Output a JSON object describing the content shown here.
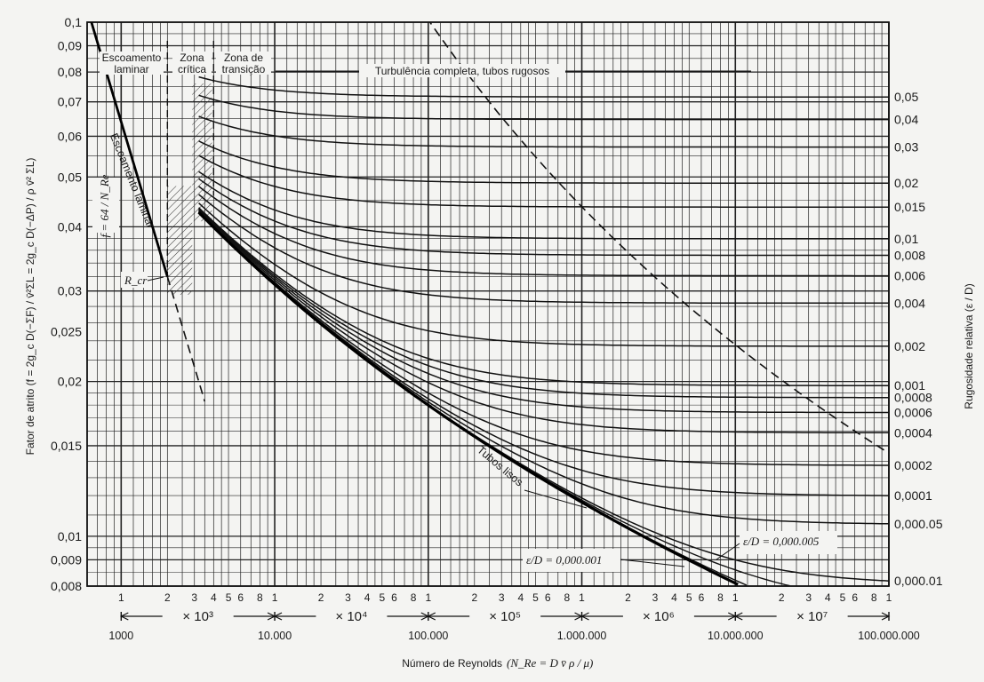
{
  "chart_data": {
    "type": "line",
    "x_scale": "log",
    "y_scale": "log",
    "xlim": [
      600,
      100000000
    ],
    "ylim": [
      0.008,
      0.1
    ],
    "grid": true,
    "ylabel": "Fator de atrito",
    "ylabel_formula": "(f = 2g_c D(−ΣF) / v̄²ΣL = 2g_c D(−ΔP) / ρ v̄² ΣL)",
    "xlabel": "Número de Reynolds",
    "xlabel_formula": "(N_Re = D v̄ ρ / μ)",
    "right_label": "Rugosidade relativa",
    "right_label_formula": "(ε / D)",
    "y_ticks": [
      {
        "v": 0.1,
        "t": "0,1"
      },
      {
        "v": 0.09,
        "t": "0,09"
      },
      {
        "v": 0.08,
        "t": "0,08"
      },
      {
        "v": 0.07,
        "t": "0,07"
      },
      {
        "v": 0.06,
        "t": "0,06"
      },
      {
        "v": 0.05,
        "t": "0,05"
      },
      {
        "v": 0.04,
        "t": "0,04"
      },
      {
        "v": 0.03,
        "t": "0,03"
      },
      {
        "v": 0.025,
        "t": "0,025"
      },
      {
        "v": 0.02,
        "t": "0,02"
      },
      {
        "v": 0.015,
        "t": "0,015"
      },
      {
        "v": 0.01,
        "t": "0,01"
      },
      {
        "v": 0.009,
        "t": "0,009"
      },
      {
        "v": 0.008,
        "t": "0,008"
      }
    ],
    "x_minor_labels": [
      "1",
      "2",
      "3",
      "4",
      "5",
      "6",
      "8"
    ],
    "x_decade_labels": [
      {
        "v": 1000,
        "t": "1000"
      },
      {
        "v": 10000,
        "t": "10.000"
      },
      {
        "v": 100000,
        "t": "100.000"
      },
      {
        "v": 1000000,
        "t": "1.000.000"
      },
      {
        "v": 10000000,
        "t": "10.000.000"
      },
      {
        "v": 100000000,
        "t": "100.000.000"
      }
    ],
    "multipliers": [
      {
        "from": 1000,
        "to": 10000,
        "t": "× 10³"
      },
      {
        "from": 10000,
        "to": 100000,
        "t": "× 10⁴"
      },
      {
        "from": 100000,
        "to": 1000000,
        "t": "× 10⁵"
      },
      {
        "from": 1000000,
        "to": 10000000,
        "t": "× 10⁶"
      },
      {
        "from": 10000000,
        "to": 100000000,
        "t": "× 10⁷"
      }
    ],
    "roughness_values": [
      0.05,
      0.04,
      0.03,
      0.02,
      0.015,
      0.01,
      0.008,
      0.006,
      0.004,
      0.002,
      0.001,
      0.0008,
      0.0006,
      0.0004,
      0.0002,
      0.0001,
      5e-05,
      1e-05
    ],
    "roughness_labels": [
      "0,05",
      "0,04",
      "0,03",
      "0,02",
      "0,015",
      "0,01",
      "0,008",
      "0,006",
      "0,004",
      "0,002",
      "0,001",
      "0,0008",
      "0,0006",
      "0,0004",
      "0,0002",
      "0,0001",
      "0,000.05",
      "0,000.01"
    ],
    "annotations": {
      "laminar_zone": [
        "Escoamento",
        "laminar"
      ],
      "critical_zone": [
        "Zona",
        "crítica"
      ],
      "transition_zone": [
        "Zona de",
        "transição"
      ],
      "complete_turbulence": "Turbulência completa, tubos rugosos",
      "laminar_line": "Escoamento laminar",
      "laminar_formula": "f = 64 / N_Re",
      "rcr": "R_cr",
      "smooth_pipes": "Tubos lisos",
      "eps_small_1": "ε/D = 0,000.001",
      "eps_small_2": "ε/D = 0,000.005"
    }
  }
}
